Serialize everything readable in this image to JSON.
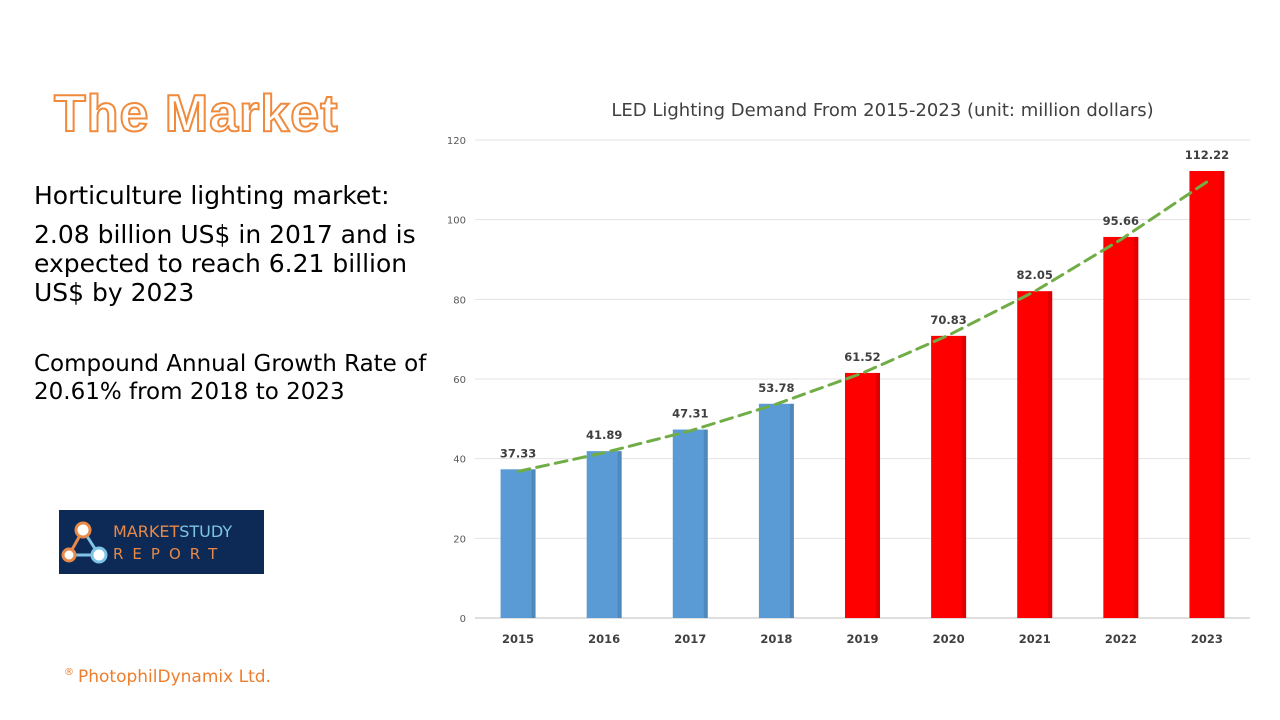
{
  "slide": {
    "title": "The Market",
    "line1": "Horticulture lighting market:",
    "line2": "2.08 billion US$ in 2017 and is expected to reach 6.21 billion US$ by 2023",
    "line3": "Compound Annual Growth Rate of 20.61% from 2018 to 2023",
    "logo": {
      "word1": "MARKET",
      "word2": "STUDY",
      "word3": "REPORT"
    },
    "copyright_symbol": "®",
    "copyright": "PhotophilDynamix Ltd."
  },
  "colors": {
    "title": "#f08a3c",
    "bar_historic": "#5b9bd5",
    "bar_forecast": "#ff0000",
    "trend": "#70ad47",
    "logo_bg": "#0c2a55"
  },
  "chart_data": {
    "type": "bar",
    "title": "LED Lighting Demand From 2015-2023 (unit: million dollars)",
    "categories": [
      "2015",
      "2016",
      "2017",
      "2018",
      "2019",
      "2020",
      "2021",
      "2022",
      "2023"
    ],
    "values": [
      37.33,
      41.89,
      47.31,
      53.78,
      61.52,
      70.83,
      82.05,
      95.66,
      112.22
    ],
    "value_labels": [
      "37.33",
      "41.89",
      "47.31",
      "53.78",
      "61.52",
      "70.83",
      "82.05",
      "95.66",
      "112.22"
    ],
    "series_color_by_index": [
      "historic",
      "historic",
      "historic",
      "historic",
      "forecast",
      "forecast",
      "forecast",
      "forecast",
      "forecast"
    ],
    "ylim": [
      0,
      120
    ],
    "yticks": [
      0,
      20,
      40,
      60,
      80,
      100,
      120
    ],
    "ytick_labels": [
      "0",
      "20",
      "40",
      "60",
      "80",
      "100",
      "120"
    ],
    "xlabel": "",
    "ylabel": "",
    "grid": true,
    "trendline": {
      "style": "dashed",
      "values": [
        36.8,
        41.5,
        47.0,
        53.7,
        61.5,
        71.0,
        82.0,
        95.0,
        109.5
      ]
    }
  }
}
